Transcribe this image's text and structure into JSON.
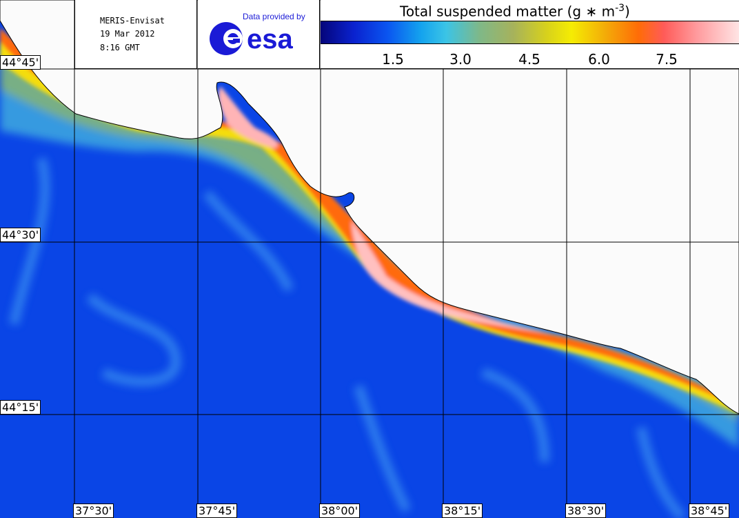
{
  "info": {
    "satellite": "MERIS-Envisat",
    "date": "19 Mar 2012",
    "time": "8:16 GMT"
  },
  "logo": {
    "provided": "Data provided by",
    "brand": "esa"
  },
  "scale": {
    "title_main": "Total suspended matter (g ∗ m",
    "title_exp": "-3",
    "title_end": ")",
    "ticks": [
      "1.5",
      "3.0",
      "4.5",
      "6.0",
      "7.5"
    ]
  },
  "grid": {
    "lat_labels": [
      "44°45'",
      "44°30'",
      "44°15'"
    ],
    "lon_labels": [
      "37°30'",
      "37°45'",
      "38°00'",
      "38°15'",
      "38°30'",
      "38°45'"
    ]
  },
  "colors": {
    "sea": "#0a45e6",
    "land": "#fbfbfb",
    "coast_high": "#ffb5b6",
    "mid": "#f4e600"
  }
}
